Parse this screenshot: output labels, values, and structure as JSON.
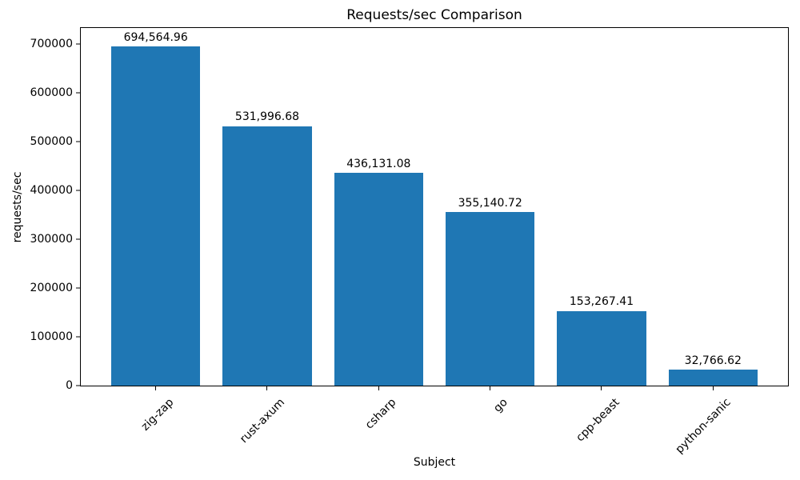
{
  "chart_data": {
    "type": "bar",
    "title": "Requests/sec Comparison",
    "xlabel": "Subject",
    "ylabel": "requests/sec",
    "categories": [
      "zig-zap",
      "rust-axum",
      "csharp",
      "go",
      "cpp-beast",
      "python-sanic"
    ],
    "values": [
      694564.96,
      531996.68,
      436131.08,
      355140.72,
      153267.41,
      32766.62
    ],
    "value_labels": [
      "694,564.96",
      "531,996.68",
      "436,131.08",
      "355,140.72",
      "153,267.41",
      "32,766.62"
    ],
    "yticks": [
      0,
      100000,
      200000,
      300000,
      400000,
      500000,
      600000,
      700000
    ],
    "ytick_labels": [
      "0",
      "100000",
      "200000",
      "300000",
      "400000",
      "500000",
      "600000",
      "700000"
    ],
    "ylim": [
      0,
      733000
    ],
    "bar_color": "#1f77b4",
    "text_color": "#000000",
    "spine_color": "#000000",
    "grid": false,
    "legend": null,
    "xtick_rotation_deg": 45
  }
}
